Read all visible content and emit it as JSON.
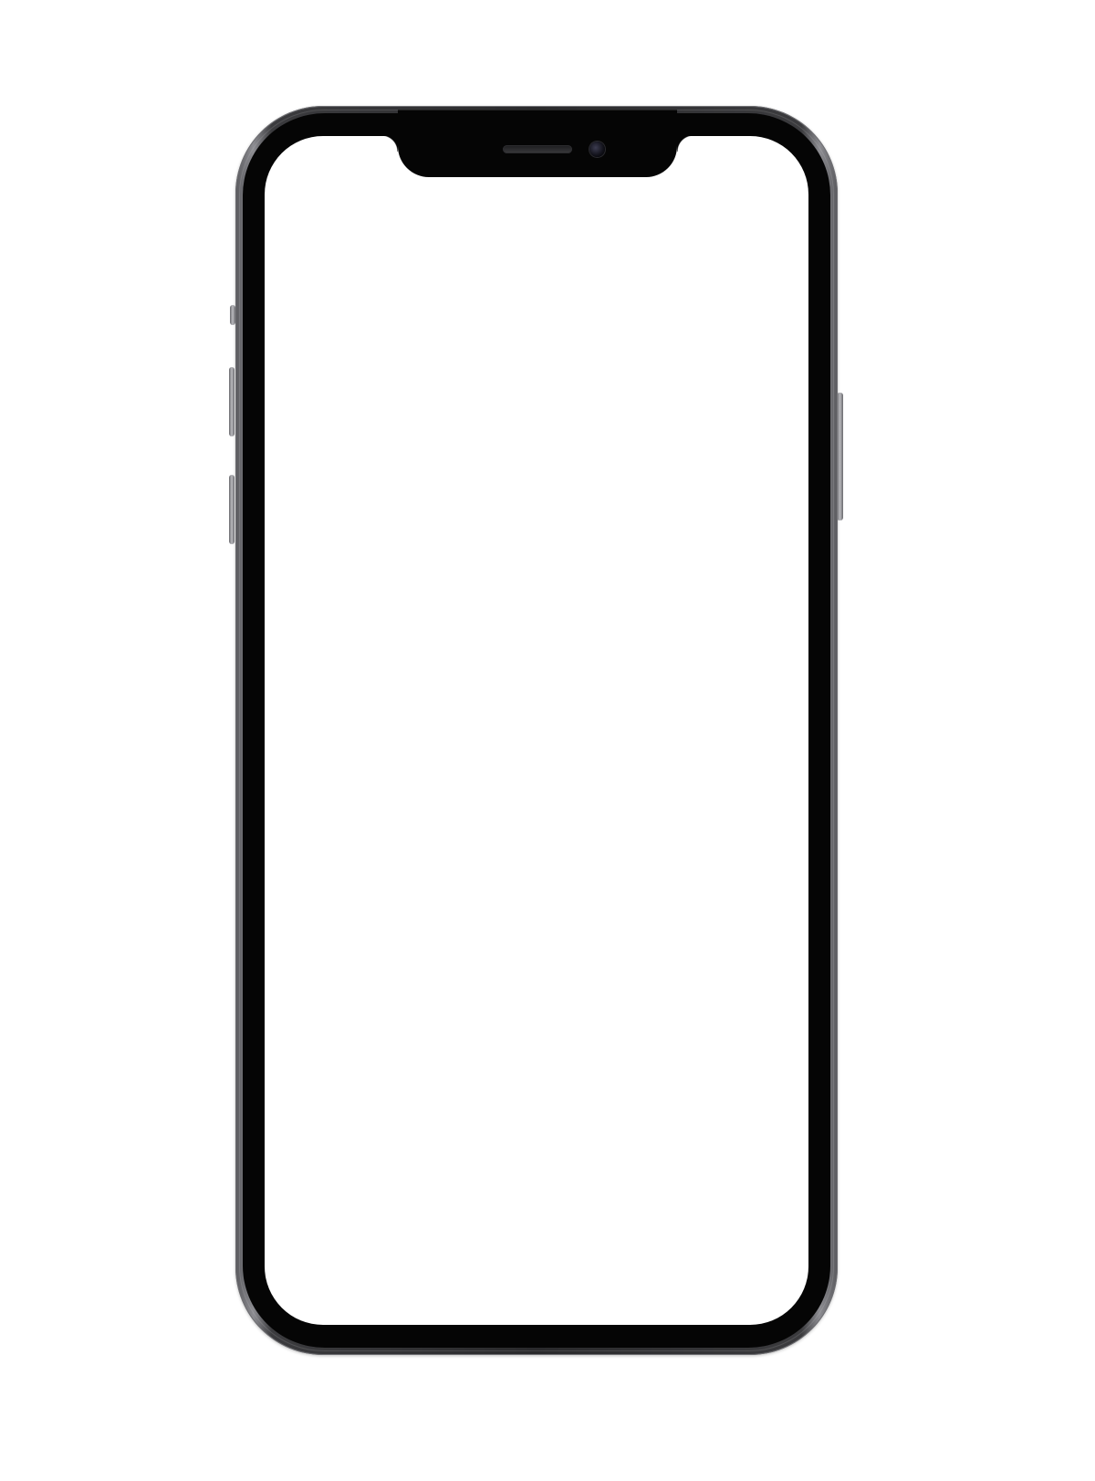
{
  "device": {
    "type": "smartphone",
    "screen_color": "#ffffff",
    "bezel_color": "#050505",
    "frame_color": "#2a2a2c"
  },
  "icons": {
    "speaker": "speaker-grille-icon",
    "camera": "front-camera-icon"
  }
}
